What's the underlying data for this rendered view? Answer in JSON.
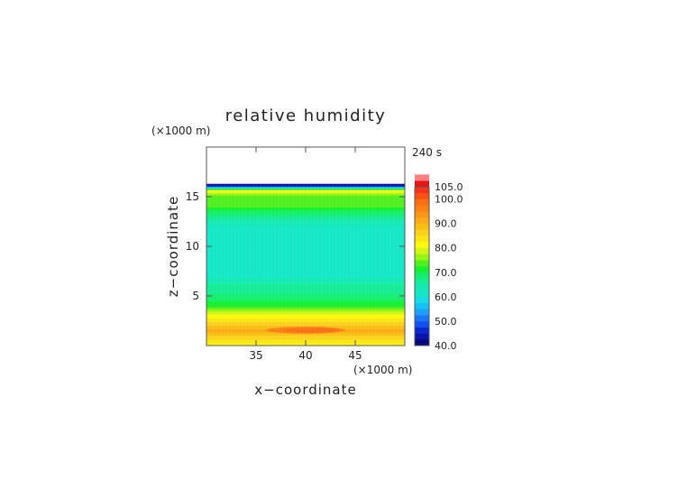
{
  "chart_data": {
    "type": "heatmap",
    "title": "relative humidity",
    "xlabel": "x−coordinate",
    "ylabel": "z−coordinate",
    "x_unit": "(×1000 m)",
    "y_unit": "(×1000 m)",
    "time_label": "240 s",
    "xlim": [
      30,
      50
    ],
    "ylim": [
      0,
      20
    ],
    "x_ticks": [
      35,
      40,
      45
    ],
    "y_ticks": [
      5,
      10,
      15
    ],
    "colorbar": {
      "min": 40,
      "max": 105,
      "step": 2.5,
      "tick_values": [
        40,
        50,
        60,
        70,
        80,
        90,
        100,
        105
      ],
      "tick_labels": [
        "40.0",
        "50.0",
        "60.0",
        "70.0",
        "80.0",
        "90.0",
        "100.0",
        "105.0"
      ],
      "colors": [
        "#08087a",
        "#0a14a8",
        "#0a2ad0",
        "#1450f0",
        "#1a78f5",
        "#1ea0fa",
        "#14c3f5",
        "#14dce6",
        "#14e6c8",
        "#14e8b4",
        "#14ec96",
        "#14ee6e",
        "#14f032",
        "#50f01e",
        "#96f514",
        "#d2f514",
        "#fafa0a",
        "#fae614",
        "#fad21e",
        "#fabe14",
        "#faaa14",
        "#fa9614",
        "#fa8214",
        "#fa6e14",
        "#fa5014",
        "#f5321e",
        "#e61414",
        "#ff8080"
      ]
    },
    "profile": [
      {
        "z": 0.0,
        "rh": 81
      },
      {
        "z": 0.5,
        "rh": 84
      },
      {
        "z": 1.0,
        "rh": 87
      },
      {
        "z": 1.5,
        "rh": 91
      },
      {
        "z": 2.0,
        "rh": 88
      },
      {
        "z": 2.5,
        "rh": 84
      },
      {
        "z": 3.0,
        "rh": 81
      },
      {
        "z": 3.5,
        "rh": 77
      },
      {
        "z": 4.0,
        "rh": 72
      },
      {
        "z": 4.5,
        "rh": 70
      },
      {
        "z": 5.0,
        "rh": 68
      },
      {
        "z": 5.5,
        "rh": 67
      },
      {
        "z": 6.0,
        "rh": 66
      },
      {
        "z": 6.5,
        "rh": 64
      },
      {
        "z": 7.0,
        "rh": 62
      },
      {
        "z": 8.0,
        "rh": 61
      },
      {
        "z": 9.0,
        "rh": 61
      },
      {
        "z": 10.0,
        "rh": 61
      },
      {
        "z": 11.0,
        "rh": 61
      },
      {
        "z": 12.0,
        "rh": 62
      },
      {
        "z": 12.5,
        "rh": 64
      },
      {
        "z": 13.0,
        "rh": 67
      },
      {
        "z": 13.5,
        "rh": 69
      },
      {
        "z": 14.0,
        "rh": 73
      },
      {
        "z": 14.5,
        "rh": 75
      },
      {
        "z": 15.0,
        "rh": 74
      },
      {
        "z": 15.3,
        "rh": 76
      },
      {
        "z": 15.6,
        "rh": 83
      },
      {
        "z": 15.8,
        "rh": 70
      },
      {
        "z": 16.0,
        "rh": 54
      },
      {
        "z": 16.1,
        "rh": 43
      }
    ],
    "data_top_z": 16.3,
    "max_zone": {
      "x": [
        36,
        44
      ],
      "z": [
        1.2,
        1.9
      ],
      "rh": 95
    }
  }
}
